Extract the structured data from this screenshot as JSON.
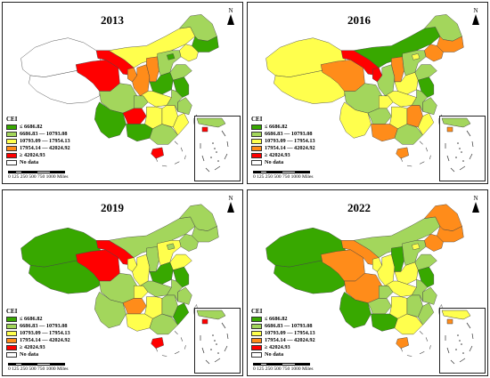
{
  "colors": {
    "c1": "#38a800",
    "c2": "#a3d65c",
    "c3": "#ffff4d",
    "c4": "#ff8c1a",
    "c5": "#ff0000",
    "nodata": "#ffffff"
  },
  "legend": {
    "title": "CEI",
    "items": [
      {
        "label": "≤ 6686.82",
        "class": "c1"
      },
      {
        "label": "6686.83 — 10793.08",
        "class": "c2"
      },
      {
        "label": "10793.09 — 17954.13",
        "class": "c3"
      },
      {
        "label": "17954.14 — 42024.92",
        "class": "c4"
      },
      {
        "label": "≥ 42024.93",
        "class": "c5"
      },
      {
        "label": "No data",
        "class": "nodata"
      }
    ]
  },
  "north_label": "N",
  "scale": {
    "ticks": "0 125 250    500    750    1000",
    "unit": "Miles"
  },
  "panels": [
    {
      "year": "2013",
      "regions": {
        "xinjiang": "nodata",
        "tibet": "nodata",
        "qinghai": "c5",
        "gansu": "c5",
        "neimenggu": "c3",
        "heilongjiang": "c2",
        "jilin": "c1",
        "liaoning": "c3",
        "ningxia": "c4",
        "shaanxi": "c4",
        "shanxi": "c4",
        "hebei": "c2",
        "beijing": "c1",
        "shandong": "c2",
        "henan": "c1",
        "sichuan": "c2",
        "chongqing": "c2",
        "yunnan": "c1",
        "guizhou": "c5",
        "hubei": "c3",
        "hunan": "c3",
        "guangxi": "c1",
        "guangdong": "c2",
        "jiangxi": "c3",
        "fujian": "c3",
        "zhejiang": "c2",
        "jiangsu": "c1",
        "anhui": "c2",
        "hainan": "c5",
        "taiwan": "nodata"
      }
    },
    {
      "year": "2016",
      "regions": {
        "xinjiang": "c3",
        "tibet": "c3",
        "qinghai": "c4",
        "gansu": "c5",
        "neimenggu": "c1",
        "heilongjiang": "c2",
        "jilin": "c4",
        "liaoning": "c4",
        "ningxia": "c5",
        "shaanxi": "c2",
        "shanxi": "c4",
        "hebei": "c2",
        "beijing": "c3",
        "shandong": "c2",
        "henan": "c3",
        "sichuan": "c2",
        "chongqing": "c3",
        "yunnan": "c3",
        "guizhou": "c2",
        "hubei": "c3",
        "hunan": "c3",
        "guangxi": "c4",
        "guangdong": "c2",
        "jiangxi": "c4",
        "fujian": "c3",
        "zhejiang": "c2",
        "jiangsu": "c1",
        "anhui": "c2",
        "hainan": "c4",
        "taiwan": "nodata"
      }
    },
    {
      "year": "2019",
      "regions": {
        "xinjiang": "c1",
        "tibet": "c1",
        "qinghai": "c5",
        "gansu": "c5",
        "neimenggu": "c2",
        "heilongjiang": "c2",
        "jilin": "c2",
        "liaoning": "c2",
        "ningxia": "c3",
        "shaanxi": "c3",
        "shanxi": "c2",
        "hebei": "c3",
        "beijing": "c2",
        "shandong": "c3",
        "henan": "c1",
        "sichuan": "c2",
        "chongqing": "c3",
        "yunnan": "c2",
        "guizhou": "c4",
        "hubei": "c2",
        "hunan": "c3",
        "guangxi": "c3",
        "guangdong": "c2",
        "jiangxi": "c2",
        "fujian": "c1",
        "zhejiang": "c2",
        "jiangsu": "c1",
        "anhui": "c2",
        "hainan": "c5",
        "taiwan": "nodata"
      }
    },
    {
      "year": "2022",
      "regions": {
        "xinjiang": "c1",
        "tibet": "c1",
        "qinghai": "c4",
        "gansu": "c4",
        "neimenggu": "c2",
        "heilongjiang": "c4",
        "jilin": "c4",
        "liaoning": "c4",
        "ningxia": "c3",
        "shaanxi": "c3",
        "shanxi": "c1",
        "hebei": "c2",
        "beijing": "c3",
        "shandong": "c2",
        "henan": "c3",
        "sichuan": "c4",
        "chongqing": "c2",
        "yunnan": "c1",
        "guizhou": "c2",
        "hubei": "c3",
        "hunan": "c3",
        "guangxi": "c1",
        "guangdong": "c3",
        "jiangxi": "c2",
        "fujian": "c2",
        "zhejiang": "c2",
        "jiangsu": "c1",
        "anhui": "c2",
        "hainan": "c4",
        "taiwan": "nodata"
      }
    }
  ]
}
